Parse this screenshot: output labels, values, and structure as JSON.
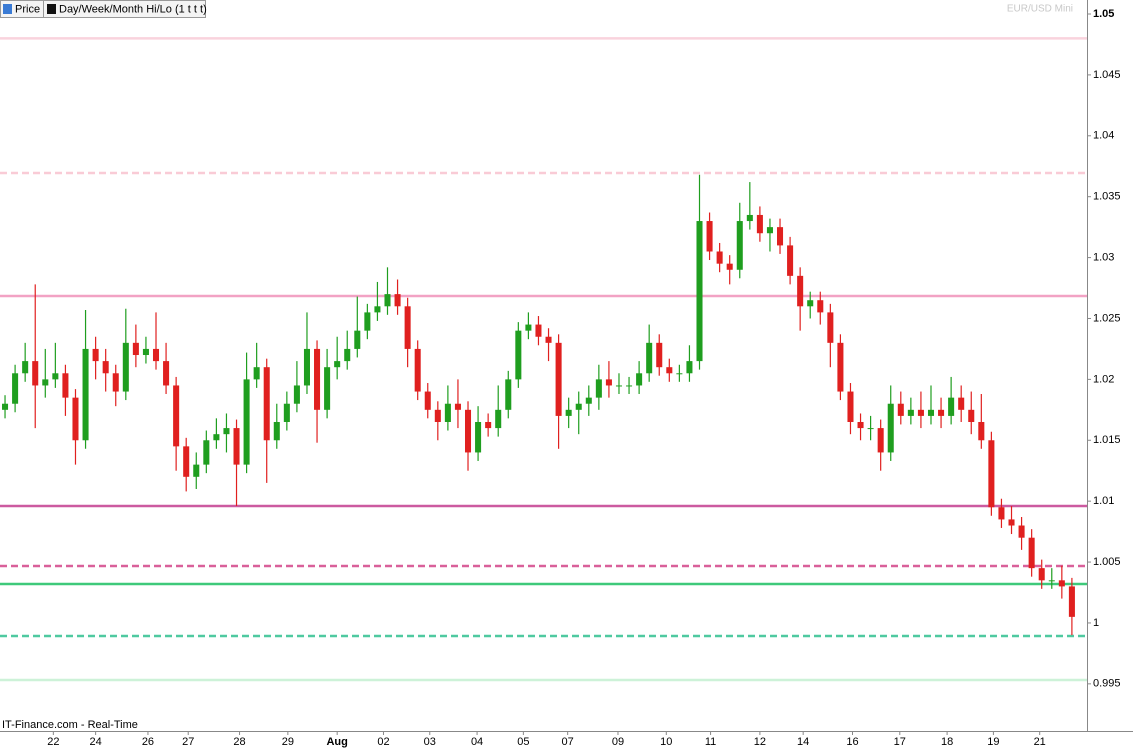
{
  "chart_data": {
    "type": "candlestick",
    "legend": [
      "Price",
      "Day/Week/Month Hi/Lo (1 t t t)"
    ],
    "watermark": "EUR/USD Mini",
    "footer": "IT-Finance.com - Real-Time",
    "up_color": "#1f9e1f",
    "down_color": "#e0201f",
    "ylim": [
      0.99121,
      1.05115
    ],
    "yticks": [
      0.995,
      1,
      1.005,
      1.01,
      1.015,
      1.02,
      1.025,
      1.03,
      1.035,
      1.04,
      1.045,
      1.05
    ],
    "xlim": [
      0,
      108
    ],
    "xticks": [
      {
        "value": 5.3,
        "label": "22"
      },
      {
        "value": 9.5,
        "label": "24"
      },
      {
        "value": 14.7,
        "label": "26"
      },
      {
        "value": 18.7,
        "label": "27"
      },
      {
        "value": 23.8,
        "label": "28"
      },
      {
        "value": 28.6,
        "label": "29"
      },
      {
        "value": 33.5,
        "label": "Aug",
        "bold": true
      },
      {
        "value": 38.1,
        "label": "02"
      },
      {
        "value": 42.7,
        "label": "03"
      },
      {
        "value": 47.4,
        "label": "04"
      },
      {
        "value": 52.0,
        "label": "05"
      },
      {
        "value": 56.4,
        "label": "07"
      },
      {
        "value": 61.4,
        "label": "09"
      },
      {
        "value": 66.2,
        "label": "10"
      },
      {
        "value": 70.6,
        "label": "11"
      },
      {
        "value": 75.5,
        "label": "12"
      },
      {
        "value": 79.8,
        "label": "14"
      },
      {
        "value": 84.7,
        "label": "16"
      },
      {
        "value": 89.4,
        "label": "17"
      },
      {
        "value": 94.1,
        "label": "18"
      },
      {
        "value": 98.7,
        "label": "19"
      },
      {
        "value": 103.3,
        "label": "21"
      }
    ],
    "levels": [
      {
        "value": 1.048,
        "color": "#f9d3dd",
        "dashed": false
      },
      {
        "value": 1.03695,
        "color": "#f9cbd6",
        "dashed": true
      },
      {
        "value": 1.02685,
        "color": "#f2a2c4",
        "dashed": false
      },
      {
        "value": 1.0096,
        "color": "#cc5aa0",
        "dashed": false
      },
      {
        "value": 1.00468,
        "color": "#d9609a",
        "dashed": true
      },
      {
        "value": 1.0032,
        "color": "#3ec97a",
        "dashed": false
      },
      {
        "value": 0.99893,
        "color": "#4fc9a0",
        "dashed": true
      },
      {
        "value": 0.99532,
        "color": "#cdf2d8",
        "dashed": false
      }
    ],
    "open": [
      1.0175,
      1.018,
      1.0205,
      1.0215,
      1.0195,
      1.02,
      1.0205,
      1.0185,
      1.015,
      1.0225,
      1.0215,
      1.0205,
      1.019,
      1.023,
      1.022,
      1.0225,
      1.0215,
      1.0195,
      1.0145,
      1.012,
      1.013,
      1.015,
      1.0155,
      1.016,
      1.013,
      1.02,
      1.021,
      1.015,
      1.0165,
      1.018,
      1.0195,
      1.0225,
      1.0175,
      1.021,
      1.0215,
      1.0225,
      1.024,
      1.0255,
      1.026,
      1.027,
      1.026,
      1.0225,
      1.019,
      1.0175,
      1.0165,
      1.018,
      1.0175,
      1.014,
      1.0165,
      1.016,
      1.0175,
      1.02,
      1.024,
      1.0245,
      1.0235,
      1.023,
      1.017,
      1.0175,
      1.018,
      1.0185,
      1.02,
      1.0195,
      1.0195,
      1.0195,
      1.0205,
      1.023,
      1.021,
      1.0205,
      1.0205,
      1.0215,
      1.033,
      1.0305,
      1.0295,
      1.029,
      1.033,
      1.0335,
      1.032,
      1.0325,
      1.031,
      1.0285,
      1.026,
      1.0265,
      1.0255,
      1.023,
      1.019,
      1.0165,
      1.016,
      1.016,
      1.014,
      1.018,
      1.017,
      1.0175,
      1.017,
      1.0175,
      1.017,
      1.0185,
      1.0175,
      1.0165,
      1.015,
      1.0095,
      1.0085,
      1.008,
      1.007,
      1.0045,
      1.0035,
      1.0035,
      1.003
    ],
    "high": [
      1.0187,
      1.0212,
      1.023,
      1.0278,
      1.0225,
      1.023,
      1.0212,
      1.0192,
      1.0257,
      1.0235,
      1.0225,
      1.0212,
      1.0258,
      1.0245,
      1.0235,
      1.0255,
      1.023,
      1.0202,
      1.0152,
      1.014,
      1.0158,
      1.0168,
      1.0172,
      1.0167,
      1.0222,
      1.023,
      1.0217,
      1.018,
      1.019,
      1.0215,
      1.0255,
      1.0232,
      1.0225,
      1.0235,
      1.024,
      1.0268,
      1.0262,
      1.028,
      1.0292,
      1.0282,
      1.0267,
      1.0232,
      1.0197,
      1.0182,
      1.0195,
      1.02,
      1.0182,
      1.0178,
      1.0172,
      1.0195,
      1.0207,
      1.0247,
      1.0255,
      1.0252,
      1.0242,
      1.0237,
      1.0185,
      1.019,
      1.0195,
      1.0212,
      1.0215,
      1.0205,
      1.0202,
      1.0215,
      1.0245,
      1.0237,
      1.0217,
      1.0212,
      1.0228,
      1.0368,
      1.0337,
      1.0312,
      1.0302,
      1.0345,
      1.0362,
      1.0342,
      1.0332,
      1.0332,
      1.0317,
      1.0292,
      1.0272,
      1.0272,
      1.0262,
      1.0237,
      1.0197,
      1.0172,
      1.017,
      1.0167,
      1.0195,
      1.019,
      1.0185,
      1.019,
      1.0195,
      1.0185,
      1.0202,
      1.0195,
      1.019,
      1.0188,
      1.0157,
      1.0102,
      1.0096,
      1.0087,
      1.0077,
      1.0052,
      1.0045,
      1.0047,
      1.0037
    ],
    "low": [
      1.0168,
      1.0173,
      1.0198,
      1.016,
      1.0185,
      1.0193,
      1.017,
      1.013,
      1.0143,
      1.02,
      1.019,
      1.0178,
      1.0183,
      1.021,
      1.0213,
      1.0208,
      1.0188,
      1.0125,
      1.0108,
      1.011,
      1.0123,
      1.0143,
      1.014,
      1.0096,
      1.0123,
      1.0193,
      1.0115,
      1.0143,
      1.0158,
      1.0173,
      1.0188,
      1.0148,
      1.0168,
      1.02,
      1.0208,
      1.0218,
      1.0233,
      1.0248,
      1.0253,
      1.0253,
      1.021,
      1.0183,
      1.0168,
      1.015,
      1.0158,
      1.016,
      1.0125,
      1.0133,
      1.0153,
      1.0153,
      1.0168,
      1.0193,
      1.0233,
      1.0228,
      1.0215,
      1.0143,
      1.016,
      1.0155,
      1.017,
      1.0175,
      1.0185,
      1.0188,
      1.0188,
      1.0188,
      1.0198,
      1.0203,
      1.0198,
      1.0198,
      1.0198,
      1.0208,
      1.0298,
      1.0288,
      1.0278,
      1.0283,
      1.0323,
      1.0313,
      1.0305,
      1.0303,
      1.0278,
      1.024,
      1.025,
      1.0245,
      1.021,
      1.0183,
      1.0155,
      1.015,
      1.015,
      1.0125,
      1.0133,
      1.0163,
      1.0163,
      1.016,
      1.0163,
      1.016,
      1.0163,
      1.0165,
      1.0155,
      1.0143,
      1.0088,
      1.0078,
      1.0073,
      1.006,
      1.0038,
      1.0028,
      1.0028,
      1.002,
      0.999
    ],
    "close": [
      1.018,
      1.0205,
      1.0215,
      1.0195,
      1.02,
      1.0205,
      1.0185,
      1.015,
      1.0225,
      1.0215,
      1.0205,
      1.019,
      1.023,
      1.022,
      1.0225,
      1.0215,
      1.0195,
      1.0145,
      1.012,
      1.013,
      1.015,
      1.0155,
      1.016,
      1.013,
      1.02,
      1.021,
      1.015,
      1.0165,
      1.018,
      1.0195,
      1.0225,
      1.0175,
      1.021,
      1.0215,
      1.0225,
      1.024,
      1.0255,
      1.026,
      1.027,
      1.026,
      1.0225,
      1.019,
      1.0175,
      1.0165,
      1.018,
      1.0175,
      1.014,
      1.0165,
      1.016,
      1.0175,
      1.02,
      1.024,
      1.0245,
      1.0235,
      1.023,
      1.017,
      1.0175,
      1.018,
      1.0185,
      1.02,
      1.0195,
      1.0195,
      1.0195,
      1.0205,
      1.023,
      1.021,
      1.0205,
      1.0205,
      1.0215,
      1.033,
      1.0305,
      1.0295,
      1.029,
      1.033,
      1.0335,
      1.032,
      1.0325,
      1.031,
      1.0285,
      1.026,
      1.0265,
      1.0255,
      1.023,
      1.019,
      1.0165,
      1.016,
      1.016,
      1.014,
      1.018,
      1.017,
      1.0175,
      1.017,
      1.0175,
      1.017,
      1.0185,
      1.0175,
      1.0165,
      1.015,
      1.0095,
      1.0085,
      1.008,
      1.007,
      1.0045,
      1.0035,
      1.0035,
      1.003,
      1.0005
    ]
  }
}
